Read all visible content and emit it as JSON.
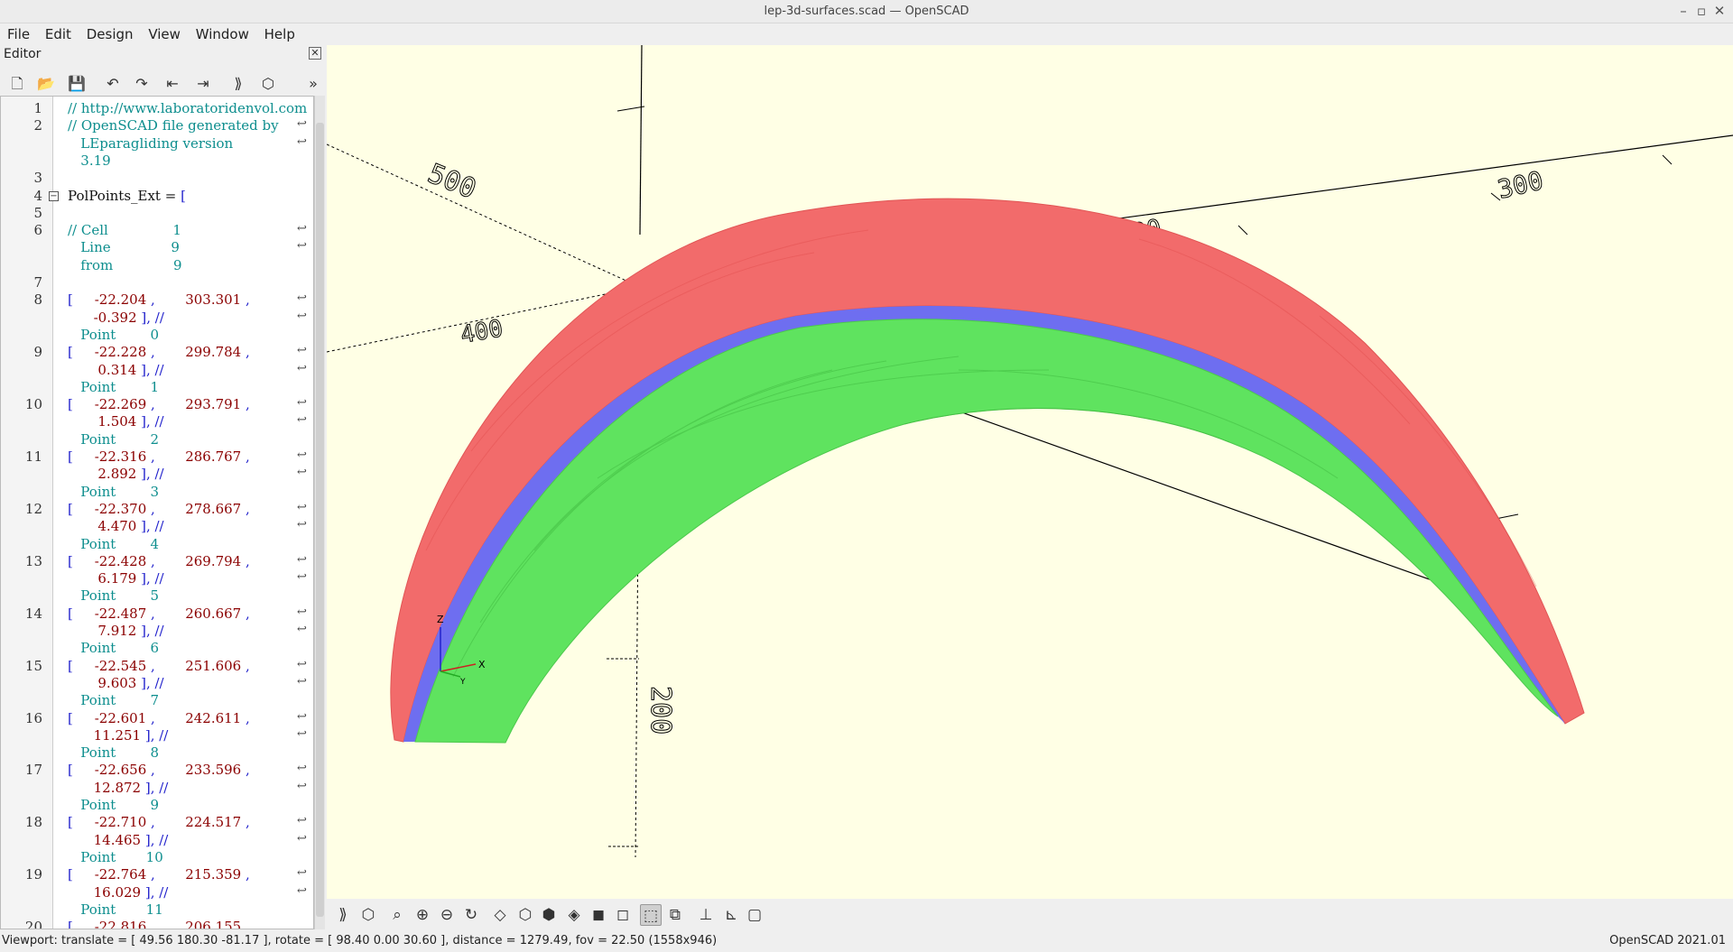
{
  "window": {
    "title": "lep-3d-surfaces.scad — OpenSCAD"
  },
  "menu": [
    "File",
    "Edit",
    "Design",
    "View",
    "Window",
    "Help"
  ],
  "editor": {
    "label": "Editor",
    "lines": [
      {
        "n": "1",
        "rows": [
          [
            [
              "c",
              "// http://www.laboratoridenvol.com"
            ]
          ]
        ]
      },
      {
        "n": "2",
        "rows": [
          [
            [
              "c",
              "// OpenSCAD file generated by"
            ]
          ],
          [
            [
              "c",
              "   LEparagliding version"
            ]
          ],
          [
            [
              "c",
              "   3.19"
            ]
          ]
        ]
      },
      {
        "n": "3",
        "rows": [
          []
        ]
      },
      {
        "n": "4",
        "rows": [
          [
            [
              "k",
              "PolPoints_Ext = "
            ],
            [
              "b",
              "["
            ]
          ]
        ]
      },
      {
        "n": "5",
        "rows": [
          []
        ]
      },
      {
        "n": "6",
        "rows": [
          [
            [
              "c",
              "// Cell               1"
            ]
          ],
          [
            [
              "c",
              "   Line              9"
            ]
          ],
          [
            [
              "c",
              "   from              9"
            ]
          ]
        ]
      },
      {
        "n": "7",
        "rows": [
          []
        ]
      },
      {
        "n": "8",
        "rows": [
          [
            [
              "b",
              "[     "
            ],
            [
              "n",
              "-22.204"
            ],
            [
              "b",
              " ,       "
            ],
            [
              "n",
              "303.301"
            ],
            [
              "b",
              " ,"
            ]
          ],
          [
            [
              "n",
              "      -0.392"
            ],
            [
              "b",
              " ], //"
            ]
          ],
          [
            [
              "c",
              "   Point        0"
            ]
          ]
        ]
      },
      {
        "n": "9",
        "rows": [
          [
            [
              "b",
              "[     "
            ],
            [
              "n",
              "-22.228"
            ],
            [
              "b",
              " ,       "
            ],
            [
              "n",
              "299.784"
            ],
            [
              "b",
              " ,"
            ]
          ],
          [
            [
              "n",
              "       0.314"
            ],
            [
              "b",
              " ], //"
            ]
          ],
          [
            [
              "c",
              "   Point        1"
            ]
          ]
        ]
      },
      {
        "n": "10",
        "rows": [
          [
            [
              "b",
              "[     "
            ],
            [
              "n",
              "-22.269"
            ],
            [
              "b",
              " ,       "
            ],
            [
              "n",
              "293.791"
            ],
            [
              "b",
              " ,"
            ]
          ],
          [
            [
              "n",
              "       1.504"
            ],
            [
              "b",
              " ], //"
            ]
          ],
          [
            [
              "c",
              "   Point        2"
            ]
          ]
        ]
      },
      {
        "n": "11",
        "rows": [
          [
            [
              "b",
              "[     "
            ],
            [
              "n",
              "-22.316"
            ],
            [
              "b",
              " ,       "
            ],
            [
              "n",
              "286.767"
            ],
            [
              "b",
              " ,"
            ]
          ],
          [
            [
              "n",
              "       2.892"
            ],
            [
              "b",
              " ], //"
            ]
          ],
          [
            [
              "c",
              "   Point        3"
            ]
          ]
        ]
      },
      {
        "n": "12",
        "rows": [
          [
            [
              "b",
              "[     "
            ],
            [
              "n",
              "-22.370"
            ],
            [
              "b",
              " ,       "
            ],
            [
              "n",
              "278.667"
            ],
            [
              "b",
              " ,"
            ]
          ],
          [
            [
              "n",
              "       4.470"
            ],
            [
              "b",
              " ], //"
            ]
          ],
          [
            [
              "c",
              "   Point        4"
            ]
          ]
        ]
      },
      {
        "n": "13",
        "rows": [
          [
            [
              "b",
              "[     "
            ],
            [
              "n",
              "-22.428"
            ],
            [
              "b",
              " ,       "
            ],
            [
              "n",
              "269.794"
            ],
            [
              "b",
              " ,"
            ]
          ],
          [
            [
              "n",
              "       6.179"
            ],
            [
              "b",
              " ], //"
            ]
          ],
          [
            [
              "c",
              "   Point        5"
            ]
          ]
        ]
      },
      {
        "n": "14",
        "rows": [
          [
            [
              "b",
              "[     "
            ],
            [
              "n",
              "-22.487"
            ],
            [
              "b",
              " ,       "
            ],
            [
              "n",
              "260.667"
            ],
            [
              "b",
              " ,"
            ]
          ],
          [
            [
              "n",
              "       7.912"
            ],
            [
              "b",
              " ], //"
            ]
          ],
          [
            [
              "c",
              "   Point        6"
            ]
          ]
        ]
      },
      {
        "n": "15",
        "rows": [
          [
            [
              "b",
              "[     "
            ],
            [
              "n",
              "-22.545"
            ],
            [
              "b",
              " ,       "
            ],
            [
              "n",
              "251.606"
            ],
            [
              "b",
              " ,"
            ]
          ],
          [
            [
              "n",
              "       9.603"
            ],
            [
              "b",
              " ], //"
            ]
          ],
          [
            [
              "c",
              "   Point        7"
            ]
          ]
        ]
      },
      {
        "n": "16",
        "rows": [
          [
            [
              "b",
              "[     "
            ],
            [
              "n",
              "-22.601"
            ],
            [
              "b",
              " ,       "
            ],
            [
              "n",
              "242.611"
            ],
            [
              "b",
              " ,"
            ]
          ],
          [
            [
              "n",
              "      11.251"
            ],
            [
              "b",
              " ], //"
            ]
          ],
          [
            [
              "c",
              "   Point        8"
            ]
          ]
        ]
      },
      {
        "n": "17",
        "rows": [
          [
            [
              "b",
              "[     "
            ],
            [
              "n",
              "-22.656"
            ],
            [
              "b",
              " ,       "
            ],
            [
              "n",
              "233.596"
            ],
            [
              "b",
              " ,"
            ]
          ],
          [
            [
              "n",
              "      12.872"
            ],
            [
              "b",
              " ], //"
            ]
          ],
          [
            [
              "c",
              "   Point        9"
            ]
          ]
        ]
      },
      {
        "n": "18",
        "rows": [
          [
            [
              "b",
              "[     "
            ],
            [
              "n",
              "-22.710"
            ],
            [
              "b",
              " ,       "
            ],
            [
              "n",
              "224.517"
            ],
            [
              "b",
              " ,"
            ]
          ],
          [
            [
              "n",
              "      14.465"
            ],
            [
              "b",
              " ], //"
            ]
          ],
          [
            [
              "c",
              "   Point       10"
            ]
          ]
        ]
      },
      {
        "n": "19",
        "rows": [
          [
            [
              "b",
              "[     "
            ],
            [
              "n",
              "-22.764"
            ],
            [
              "b",
              " ,       "
            ],
            [
              "n",
              "215.359"
            ],
            [
              "b",
              " ,"
            ]
          ],
          [
            [
              "n",
              "      16.029"
            ],
            [
              "b",
              " ], //"
            ]
          ],
          [
            [
              "c",
              "   Point       11"
            ]
          ]
        ]
      },
      {
        "n": "20",
        "rows": [
          [
            [
              "b",
              "[     "
            ],
            [
              "n",
              "-22.816"
            ],
            [
              "b",
              " ,       "
            ],
            [
              "n",
              "206.155"
            ],
            [
              "b",
              " ,"
            ]
          ]
        ]
      }
    ]
  },
  "viewport": {
    "axis_labels": [
      "500",
      "300",
      "400",
      "200",
      "100",
      "200"
    ],
    "axes_gizmo": {
      "z": "Z",
      "x": "X",
      "y": "Y"
    },
    "colors": {
      "background": "#ffffe5",
      "top_surface": "#f26b6b",
      "bottom_surface": "#5fe35f",
      "edge": "#6e6ef0"
    }
  },
  "status": {
    "viewport": "Viewport: translate = [ 49.56 180.30 -81.17 ], rotate = [ 98.40 0.00 30.60 ], distance = 1279.49, fov = 22.50 (1558x946)",
    "version": "OpenSCAD 2021.01"
  }
}
